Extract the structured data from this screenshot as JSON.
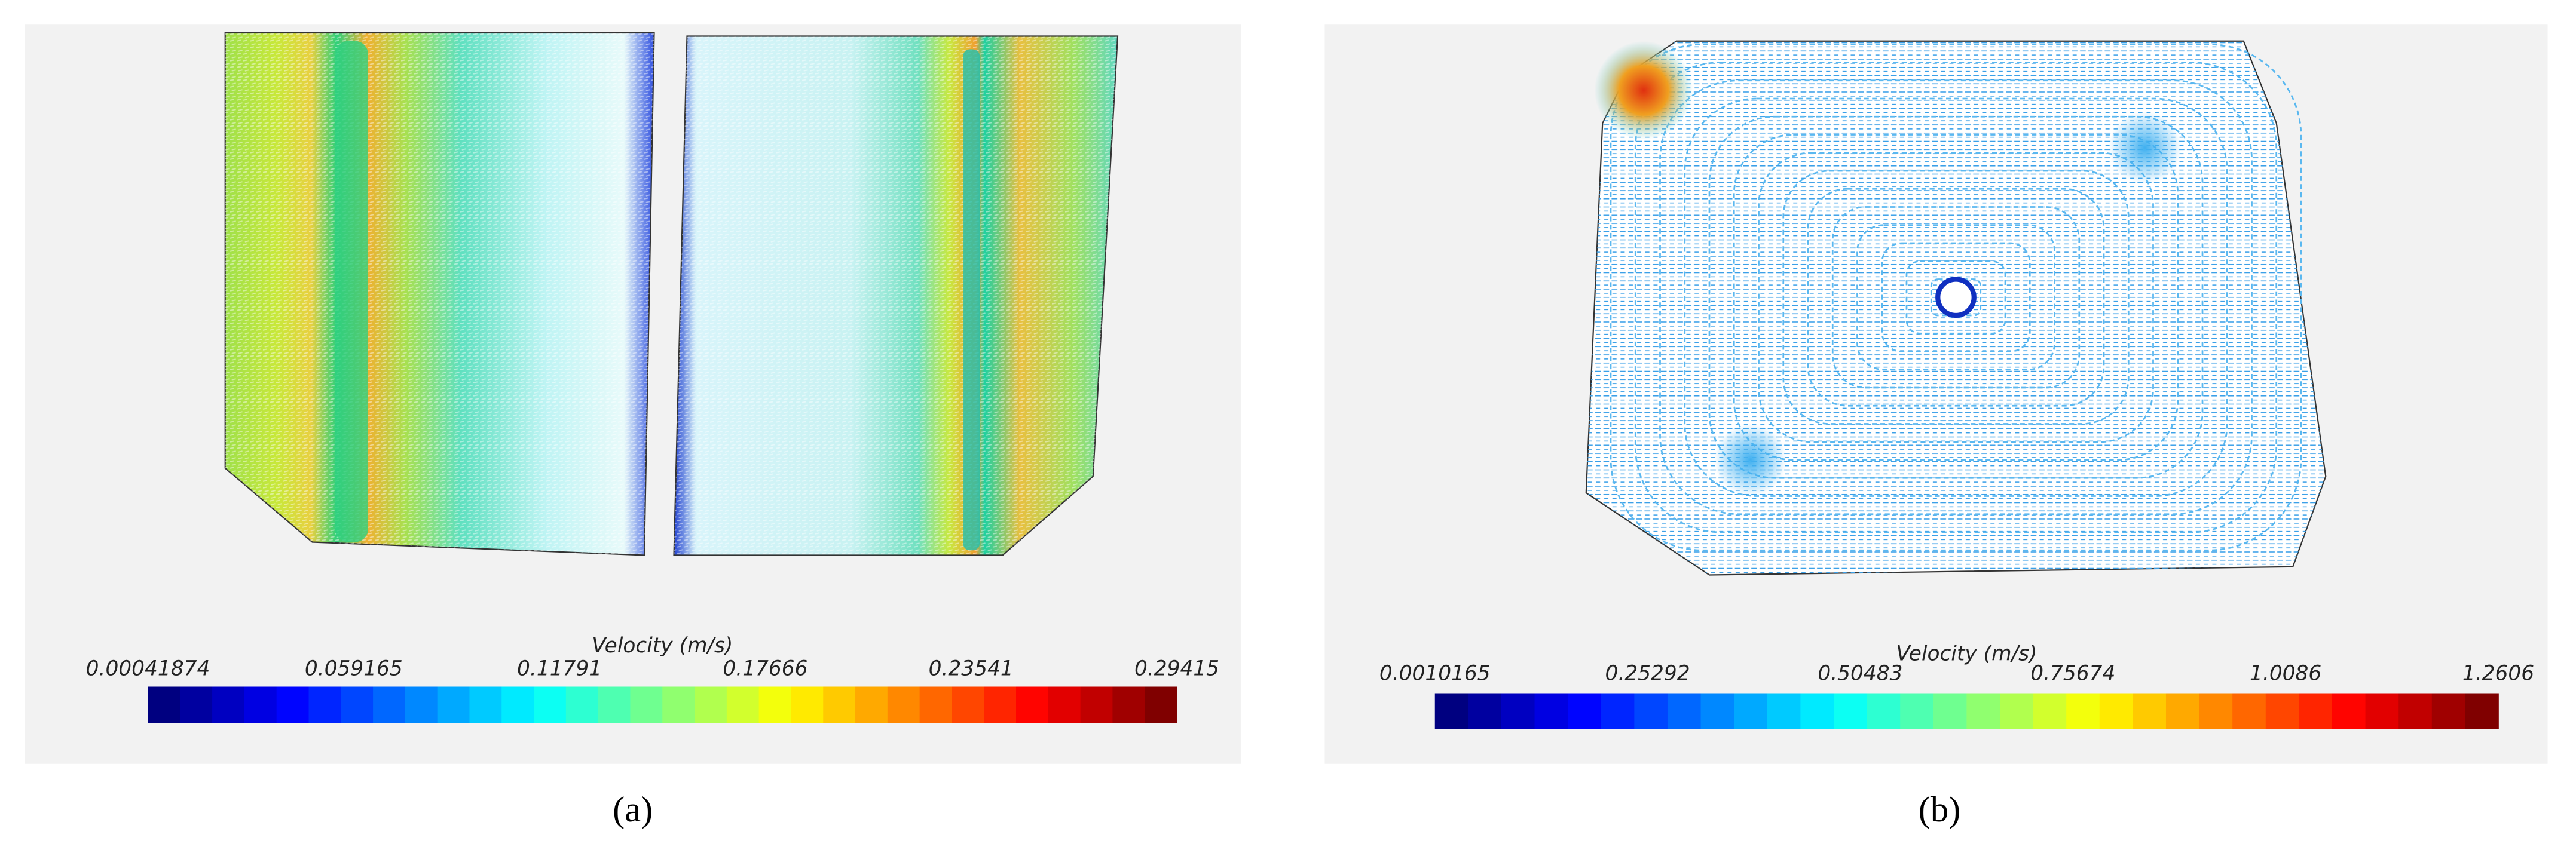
{
  "panels": [
    {
      "label": "(a)",
      "colorbar": {
        "title": "Velocity (m/s)",
        "ticks": [
          "0.00041874",
          "0.059165",
          "0.11791",
          "0.17666",
          "0.23541",
          "0.29415"
        ]
      }
    },
    {
      "label": "(b)",
      "colorbar": {
        "title": "Velocity (m/s)",
        "ticks": [
          "0.0010165",
          "0.25292",
          "0.50483",
          "0.75674",
          "1.0086",
          "1.2606"
        ]
      }
    }
  ]
}
